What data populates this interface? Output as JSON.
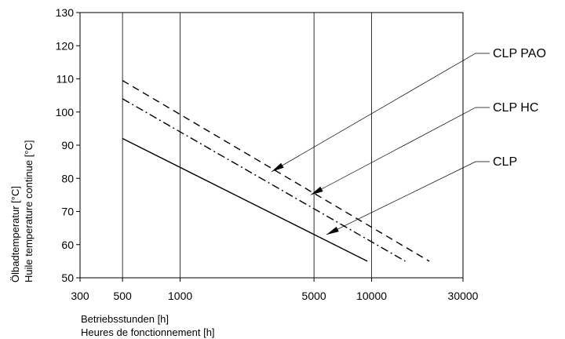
{
  "chart_data": {
    "type": "line",
    "title": "",
    "x_scale": "log",
    "xlim": [
      300,
      30000
    ],
    "ylim": [
      50,
      130
    ],
    "x_ticks": [
      300,
      500,
      1000,
      5000,
      10000,
      30000
    ],
    "x_tick_labels": [
      "300",
      "500",
      "1000",
      "5000",
      "10000",
      "30000"
    ],
    "y_ticks": [
      50,
      60,
      70,
      80,
      90,
      100,
      110,
      120,
      130
    ],
    "y_tick_labels": [
      "50",
      "60",
      "70",
      "80",
      "90",
      "100",
      "110",
      "120",
      "130"
    ],
    "xlabel": [
      "Betriebsstunden [h]",
      "Heures de fonctionnement [h]"
    ],
    "ylabel": [
      "Ölbadtemperatur [°C]",
      "Huile temperature continue [°C]"
    ],
    "grid": "vertical",
    "series": [
      {
        "name": "CLP PAO",
        "style": "dashed",
        "x": [
          500,
          20000
        ],
        "y": [
          109.5,
          55
        ],
        "arrow_at": {
          "x": 3000,
          "y": 82
        }
      },
      {
        "name": "CLP HC",
        "style": "dash-dot",
        "x": [
          500,
          15000
        ],
        "y": [
          104,
          55
        ],
        "arrow_at": {
          "x": 4800,
          "y": 75
        }
      },
      {
        "name": "CLP",
        "style": "solid",
        "x": [
          500,
          9500
        ],
        "y": [
          92,
          55
        ],
        "arrow_at": {
          "x": 5800,
          "y": 63
        }
      }
    ]
  }
}
